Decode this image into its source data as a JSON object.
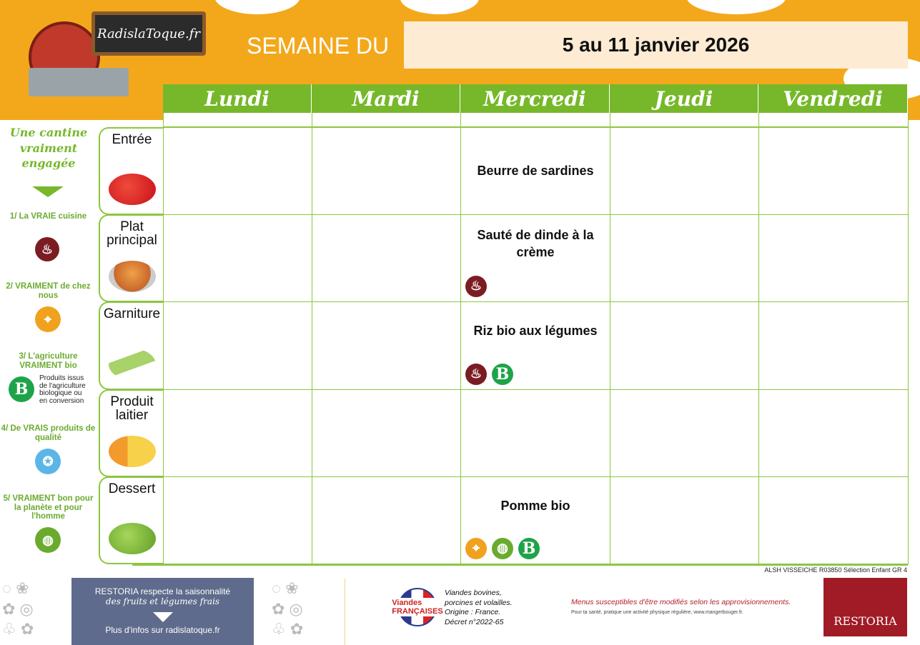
{
  "header": {
    "logo_text": "RadislaToque.fr",
    "semaine_label": "SEMAINE DU",
    "dates": "5 au 11 janvier 2026"
  },
  "days": [
    "Lundi",
    "Mardi",
    "Mercredi",
    "Jeudi",
    "Vendredi"
  ],
  "rows": [
    {
      "label": "Entrée",
      "cells": [
        "",
        "",
        "Beurre de sardines",
        "",
        ""
      ],
      "badges": []
    },
    {
      "label": "Plat principal",
      "cells": [
        "",
        "",
        "Sauté de dinde à la crème",
        "",
        ""
      ],
      "badges": [
        "pot-icon"
      ]
    },
    {
      "label": "Garniture",
      "cells": [
        "",
        "",
        "Riz bio aux légumes",
        "",
        ""
      ],
      "badges": [
        "pot-icon",
        "bio-icon"
      ]
    },
    {
      "label": "Produit laitier",
      "cells": [
        "",
        "",
        "",
        "",
        ""
      ],
      "badges": []
    },
    {
      "label": "Dessert",
      "cells": [
        "",
        "",
        "Pomme bio",
        "",
        ""
      ],
      "badges": [
        "local-icon",
        "planet-icon",
        "bio-icon"
      ]
    }
  ],
  "sidebar": {
    "tagline": "Une cantine vraiment engagée",
    "items": [
      {
        "label": "1/ La VRAIE cuisine",
        "icon": "pot-icon"
      },
      {
        "label": "2/ VRAIMENT de chez nous",
        "icon": "local-icon"
      },
      {
        "label": "3/ L'agriculture VRAIMENT bio",
        "icon": "bio-icon",
        "note": "Produits issus de l'agriculture biologique ou en conversion"
      },
      {
        "label": "4/ De VRAIS produits de qualité",
        "icon": "quality-icon"
      },
      {
        "label": "5/ VRAIMENT bon pour la planète et pour l'homme",
        "icon": "planet-icon"
      }
    ],
    "bio_letter": "B"
  },
  "footer": {
    "reference": "ALSH VISSEICHE R03850 Sélection Enfant GR 4",
    "season_line1": "RESTORIA respecte la saisonnalité",
    "season_line2": "des fruits et légumes frais",
    "more_info": "Plus d'infos sur radislatoque.fr",
    "vf_logo": "Viandes FRANÇAISES",
    "vf_line1": "Viandes bovines,",
    "vf_line2": "porcines et volailles.",
    "vf_origin": "Origine : France.",
    "vf_decree": "Décret n°2022-65",
    "disclaimer": "Menus susceptibles d'être modifiés selon les approvisionnements.",
    "health": "Pour ta santé, pratique une activité physique régulière, www.mangerbouger.fr.",
    "brand": "RESTORIA"
  },
  "colors": {
    "green": "#76b82a",
    "orange": "#f3a81b",
    "pot": "#7b1c23",
    "bio": "#1fa34a",
    "restoria": "#a01b25"
  }
}
